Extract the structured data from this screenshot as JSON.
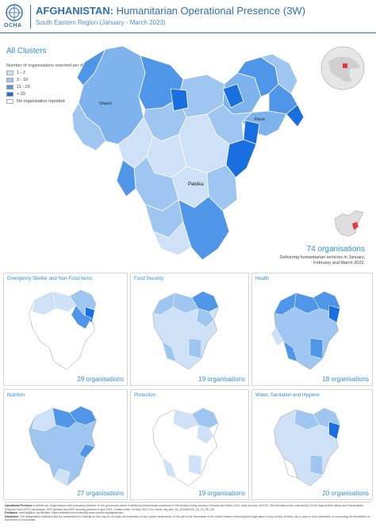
{
  "header": {
    "logo_text": "OCHA",
    "title_bold": "AFGHANISTAN:",
    "title_rest": " Humanitarian Operational Presence (3W)",
    "subtitle": "South Eastern Region (January - March 2023)"
  },
  "main_map": {
    "heading": "All Clusters",
    "legend_title": "Number of organisations reported per district",
    "legend": [
      {
        "label": "1 - 2",
        "color": "#cfe1f7"
      },
      {
        "label": "3 - 10",
        "color": "#9fc6f0"
      },
      {
        "label": "11 - 20",
        "color": "#4f95e8"
      },
      {
        "label": "> 20",
        "color": "#1a6fe0"
      },
      {
        "label": "No organisation reported",
        "color": "#ffffff"
      }
    ],
    "place_labels": {
      "paktika": "Paktika",
      "khost": "Khost",
      "ghazni": "Ghazni"
    },
    "total_count": "74 organisations",
    "total_desc": "Delivering humanitarian services in January, February and March 2023."
  },
  "clusters": [
    {
      "name": "Emergency Shelter and Non-Food Items",
      "count": "29 organisations"
    },
    {
      "name": "Food Security",
      "count": "19 organisations"
    },
    {
      "name": "Health",
      "count": "18 organisations"
    },
    {
      "name": "Nutrition",
      "count": "27 organisations"
    },
    {
      "name": "Protection",
      "count": "19 organisations"
    },
    {
      "name": "Water, Sanitation and Hygiene",
      "count": "20 organisations"
    }
  ],
  "footer": {
    "line1_label": "Operational Presence",
    "line1": " is defined as: Organizations with a physical presence on the ground and active in delivering humanitarian assistance in the districts during January, February and March 2023. Data Sources: ASCHO, 3W information tool, collected by OCHA regional field offices and Humanitarian Regional Team (HRT) mechanism, HRP partners and HRP reporting partners in April 2023. Creation Date: 03 May 2023. Doc. Name: afg_sea_3w_2023MAY03_A3_S1_ZR_EN",
    "line2_label": "Feedback:",
    "line2": " ocha-afg@un.org Website: https://reliefweb.int/country/afg www.unocha.org/afghanistan",
    "line3_label": "Disclaimer:",
    "line3": " The designations employed and the presentation of material on this map do not imply the expression of any opinion whatsoever on the part of the Secretariat of the United Nations concerning the legal status of any country, territory, city or area or of its authorities, or concerning the delimitation of its frontiers or boundaries."
  }
}
